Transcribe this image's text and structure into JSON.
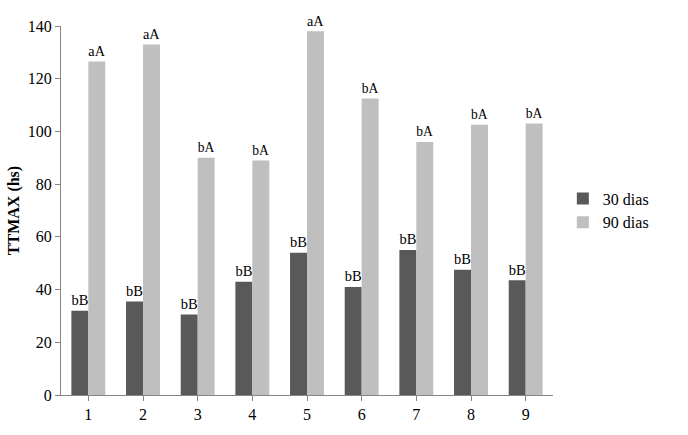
{
  "chart_data": {
    "type": "bar",
    "y_label": "TTMAX (hs)",
    "categories": [
      "1",
      "2",
      "3",
      "4",
      "5",
      "6",
      "7",
      "8",
      "9"
    ],
    "series": [
      {
        "name": "30 dias",
        "color": "#595959",
        "values": [
          32,
          35.5,
          30.5,
          43,
          54,
          41,
          55,
          47.5,
          43.5
        ],
        "annotations": [
          "bB",
          "bB",
          "bB",
          "bB",
          "bB",
          "bB",
          "bB",
          "bB",
          "bB"
        ]
      },
      {
        "name": "90 dias",
        "color": "#bfbfbf",
        "values": [
          126.5,
          133,
          90,
          89,
          138,
          112.5,
          96,
          102.5,
          103
        ],
        "annotations": [
          "aA",
          "aA",
          "bA",
          "bA",
          "aA",
          "bA",
          "bA",
          "bA",
          "bA"
        ]
      }
    ],
    "ylim": [
      0,
      140
    ],
    "yticks": [
      0,
      20,
      40,
      60,
      80,
      100,
      120,
      140
    ],
    "grid": false,
    "legend": "right"
  }
}
